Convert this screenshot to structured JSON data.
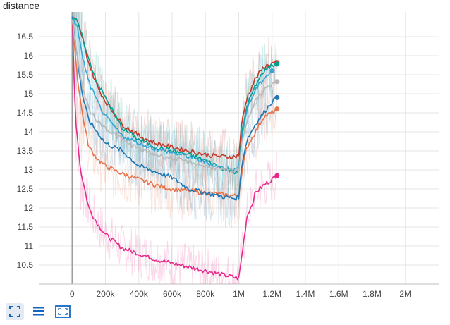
{
  "chart_data": {
    "type": "line",
    "title": "distance",
    "xlabel": "",
    "ylabel": "",
    "xlim": [
      -200000,
      2200000
    ],
    "ylim": [
      10.0,
      17.0
    ],
    "x_ticks": [
      0,
      200000,
      400000,
      600000,
      800000,
      1000000,
      1200000,
      1400000,
      1600000,
      1800000,
      2000000
    ],
    "x_tick_labels": [
      "0",
      "200k",
      "400k",
      "600k",
      "800k",
      "1M",
      "1.2M",
      "1.4M",
      "1.6M",
      "1.8M",
      "2M"
    ],
    "y_ticks": [
      10.5,
      11,
      11.5,
      12,
      12.5,
      13,
      13.5,
      14,
      14.5,
      15,
      15.5,
      16,
      16.5
    ],
    "y_tick_labels": [
      "10.5",
      "11",
      "11.5",
      "12",
      "12.5",
      "13",
      "13.5",
      "14",
      "14.5",
      "15",
      "15.5",
      "16",
      "16.5"
    ],
    "grid": true,
    "series": [
      {
        "color": "#e7298a",
        "x": [
          0,
          20000,
          50000,
          100000,
          150000,
          200000,
          300000,
          400000,
          500000,
          600000,
          700000,
          800000,
          900000,
          970000,
          1000000,
          1020000,
          1050000,
          1080000,
          1100000,
          1150000,
          1200000,
          1230000
        ],
        "y": [
          17.0,
          14.4,
          13.0,
          12.0,
          11.6,
          11.3,
          10.95,
          10.8,
          10.65,
          10.55,
          10.45,
          10.35,
          10.25,
          10.18,
          10.15,
          10.8,
          11.8,
          12.1,
          12.4,
          12.6,
          12.75,
          12.85
        ]
      },
      {
        "color": "#e8734a",
        "x": [
          0,
          30000,
          60000,
          100000,
          150000,
          200000,
          300000,
          400000,
          500000,
          600000,
          700000,
          800000,
          900000,
          980000,
          1000000,
          1020000,
          1050000,
          1100000,
          1150000,
          1200000,
          1230000
        ],
        "y": [
          17.0,
          15.5,
          14.5,
          13.6,
          13.3,
          13.1,
          12.9,
          12.75,
          12.6,
          12.5,
          12.45,
          12.4,
          12.35,
          12.32,
          12.35,
          13.0,
          13.6,
          14.0,
          14.4,
          14.5,
          14.6
        ]
      },
      {
        "color": "#1f77b4",
        "x": [
          0,
          30000,
          60000,
          100000,
          150000,
          200000,
          300000,
          400000,
          500000,
          600000,
          700000,
          800000,
          900000,
          980000,
          1000000,
          1020000,
          1050000,
          1100000,
          1150000,
          1200000,
          1230000
        ],
        "y": [
          17.0,
          16.0,
          15.0,
          14.3,
          14.0,
          13.7,
          13.5,
          13.1,
          12.95,
          12.8,
          12.5,
          12.4,
          12.3,
          12.25,
          12.3,
          13.2,
          13.8,
          14.2,
          14.5,
          14.8,
          14.9
        ]
      },
      {
        "color": "#c0392b",
        "x": [
          0,
          30000,
          60000,
          100000,
          150000,
          200000,
          300000,
          400000,
          500000,
          600000,
          700000,
          800000,
          900000,
          980000,
          1000000,
          1020000,
          1050000,
          1100000,
          1150000,
          1200000,
          1230000
        ],
        "y": [
          17.0,
          16.9,
          16.5,
          15.8,
          15.2,
          14.8,
          14.2,
          13.9,
          13.7,
          13.6,
          13.5,
          13.4,
          13.35,
          13.35,
          13.4,
          14.3,
          14.9,
          15.4,
          15.7,
          15.8,
          15.82
        ]
      },
      {
        "color": "#009e8f",
        "x": [
          0,
          30000,
          60000,
          100000,
          150000,
          200000,
          300000,
          400000,
          500000,
          600000,
          700000,
          800000,
          900000,
          980000,
          1000000,
          1020000,
          1050000,
          1100000,
          1150000,
          1200000,
          1230000
        ],
        "y": [
          17.0,
          16.9,
          16.5,
          15.9,
          15.3,
          14.9,
          14.1,
          13.8,
          13.6,
          13.5,
          13.4,
          13.25,
          13.05,
          12.95,
          13.0,
          14.0,
          14.7,
          15.2,
          15.6,
          15.75,
          15.78
        ]
      },
      {
        "color": "#33a6d6",
        "x": [
          0,
          30000,
          60000,
          100000,
          150000,
          200000,
          300000,
          400000,
          500000,
          600000,
          700000,
          800000,
          900000,
          980000,
          1000000,
          1020000,
          1050000,
          1100000,
          1150000,
          1200000
        ],
        "y": [
          17.0,
          16.8,
          16.0,
          15.3,
          14.8,
          14.4,
          13.9,
          13.7,
          13.55,
          13.45,
          13.35,
          13.2,
          13.05,
          13.0,
          13.05,
          13.9,
          14.6,
          15.1,
          15.4,
          15.6
        ]
      },
      {
        "color": "#b8b8b8",
        "x": [
          0,
          30000,
          60000,
          100000,
          150000,
          200000,
          300000,
          400000,
          500000,
          600000,
          700000,
          800000,
          900000,
          980000,
          1000000,
          1020000,
          1050000,
          1100000,
          1150000,
          1200000,
          1230000
        ],
        "y": [
          17.0,
          16.0,
          15.2,
          14.6,
          14.3,
          14.1,
          13.8,
          13.55,
          13.4,
          13.3,
          13.2,
          13.1,
          13.0,
          12.95,
          13.0,
          13.8,
          14.3,
          14.8,
          15.1,
          15.25,
          15.32
        ]
      }
    ]
  },
  "toolbar": {
    "icons": [
      "fit-domain-icon",
      "toggle-log-icon",
      "expand-icon"
    ]
  }
}
